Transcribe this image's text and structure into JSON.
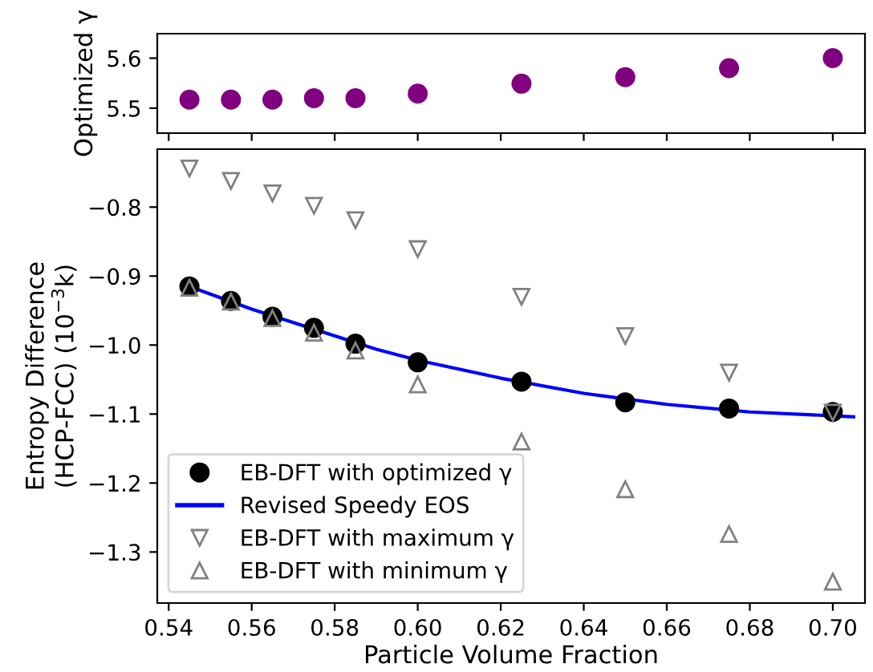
{
  "chart_data": [
    {
      "type": "scatter",
      "ylabel": "Optimized γ",
      "x": [
        0.545,
        0.555,
        0.565,
        0.575,
        0.585,
        0.6,
        0.625,
        0.65,
        0.675,
        0.7
      ],
      "marker": "circle",
      "tick_labels": "y",
      "legend": false,
      "grid": false,
      "series": [
        {
          "color": "#800080",
          "values": [
            5.517,
            5.517,
            5.517,
            5.52,
            5.52,
            5.529,
            5.549,
            5.562,
            5.58,
            5.6
          ]
        }
      ],
      "xlim": [
        0.53725,
        0.70775
      ],
      "xticks": [
        {
          "value": 0.54,
          "label": null
        },
        {
          "value": 0.56,
          "label": null
        },
        {
          "value": 0.58,
          "label": null
        },
        {
          "value": 0.6,
          "label": null
        },
        {
          "value": 0.62,
          "label": null
        },
        {
          "value": 0.64,
          "label": null
        },
        {
          "value": 0.66,
          "label": null
        },
        {
          "value": 0.68,
          "label": null
        },
        {
          "value": 0.7,
          "label": null
        }
      ],
      "ylim": [
        5.45,
        5.649
      ],
      "yticks": [
        5.5,
        5.6
      ]
    },
    {
      "type": "scatter",
      "xlabel": "Particle Volume Fraction",
      "ylabel": "Entropy Difference\n(HCP-FCC) (10$^{−3}$k)",
      "legend": "bottom left",
      "grid": false,
      "x": [
        0.545,
        0.555,
        0.565,
        0.575,
        0.585,
        0.6,
        0.625,
        0.65,
        0.675,
        0.7
      ],
      "series": [
        {
          "name": "EB-DFT with optimized γ",
          "type": "scatter",
          "marker": "circle",
          "color": "#000000",
          "values": [
            -0.915,
            -0.936,
            -0.959,
            -0.975,
            -0.998,
            -1.025,
            -1.053,
            -1.083,
            -1.092,
            -1.097
          ]
        },
        {
          "name": "Revised Speedy EOS",
          "type": "line",
          "marker": "none",
          "line_style": "solid",
          "color": "#0000ff",
          "x": [
            0.545,
            0.56,
            0.59,
            0.6,
            0.62,
            0.64,
            0.66,
            0.68,
            0.705
          ],
          "values": [
            -0.915,
            -0.948,
            -1.006,
            -1.022,
            -1.048,
            -1.07,
            -1.086,
            -1.097,
            -1.104
          ]
        },
        {
          "name": "EB-DFT with maximum γ",
          "type": "scatter",
          "marker": "triangle_down",
          "color": "#808080",
          "values": [
            -0.744,
            -0.762,
            -0.78,
            -0.798,
            -0.819,
            -0.861,
            -0.93,
            -0.987,
            -1.04,
            -1.098
          ]
        },
        {
          "name": "EB-DFT with minimum γ",
          "type": "scatter",
          "marker": "triangle",
          "color": "#808080",
          "values": [
            -0.917,
            -0.937,
            -0.961,
            -0.982,
            -1.008,
            -1.057,
            -1.14,
            -1.209,
            -1.274,
            -1.343
          ]
        }
      ],
      "xlim": [
        0.53725,
        0.70775
      ],
      "xticks": [
        0.54,
        0.56,
        0.58,
        {
          "value": 0.6,
          "label": "0.60"
        },
        0.62,
        0.64,
        0.66,
        0.68,
        {
          "value": 0.7,
          "label": "0.70"
        }
      ],
      "ylim": [
        -1.374,
        -0.716
      ],
      "yticks": [
        {
          "value": -0.8,
          "label": "−0.8"
        },
        {
          "value": -0.9,
          "label": "−0.9"
        },
        {
          "value": -1.0,
          "label": "−1.0"
        },
        {
          "value": -1.1,
          "label": "−1.1"
        },
        {
          "value": -1.2,
          "label": "−1.2"
        },
        {
          "value": -1.3,
          "label": "−1.3"
        }
      ]
    }
  ]
}
